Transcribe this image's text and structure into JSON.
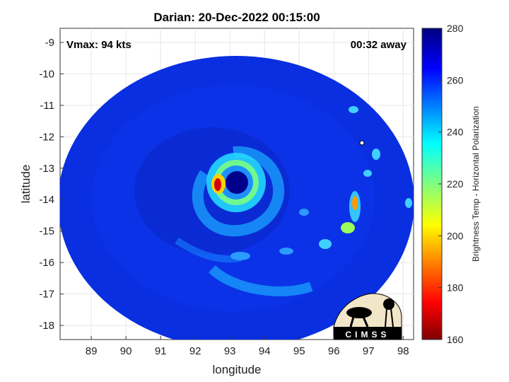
{
  "title": "Darian: 20-Dec-2022 00:15:00",
  "vmax_text": "Vmax: 94 kts",
  "time_away_text": "00:32 away",
  "logo_text": "CIMSS",
  "xlabel": "longitude",
  "ylabel": "latitude",
  "colorbar_label": "Brightness Temp - Horizontal Polarization",
  "x_ticks": [
    "89",
    "90",
    "91",
    "92",
    "93",
    "94",
    "95",
    "96",
    "97",
    "98"
  ],
  "y_ticks": [
    "-9",
    "-10",
    "-11",
    "-12",
    "-13",
    "-14",
    "-15",
    "-16",
    "-17",
    "-18"
  ],
  "colorbar_ticks": [
    "280",
    "260",
    "240",
    "220",
    "200",
    "180",
    "160"
  ],
  "map": {
    "xlim": [
      88.1,
      98.3
    ],
    "ylim": [
      -18.45,
      -8.55
    ],
    "colorbar_range": [
      160,
      280
    ],
    "colormap": "jet",
    "eye_center": {
      "lon": 93.2,
      "lat": -13.5
    },
    "background_color": "#0a2fe0",
    "eye_color": "#00008b",
    "warm_spot_color": "#d4000f"
  }
}
